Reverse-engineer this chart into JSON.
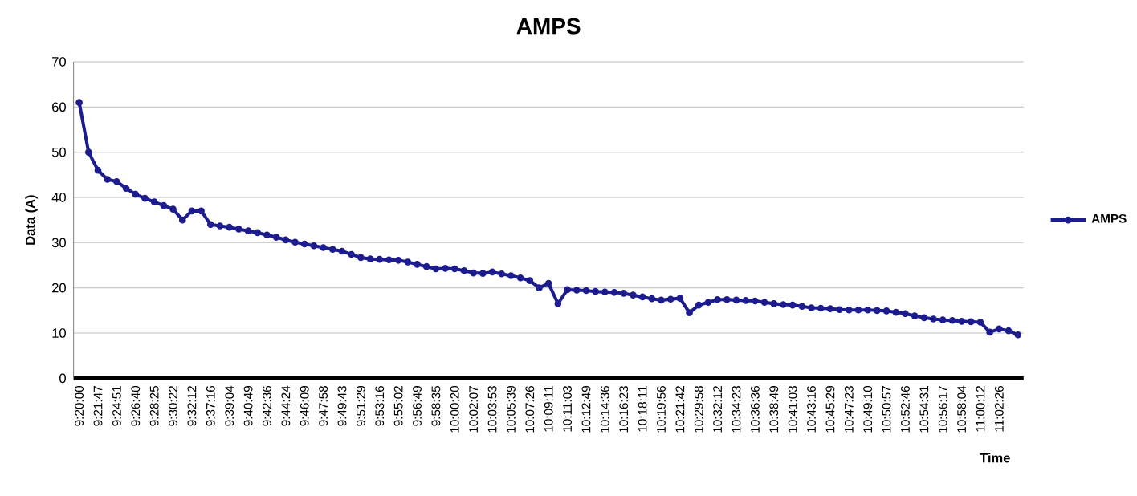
{
  "chart_data": {
    "type": "line",
    "title": "AMPS",
    "xlabel": "Time",
    "ylabel": "Data (A)",
    "categories": [
      "9:20:00",
      null,
      "9:21:47",
      null,
      "9:24:51",
      null,
      "9:26:40",
      null,
      "9:28:25",
      null,
      "9:30:22",
      null,
      "9:32:12",
      null,
      "9:37:16",
      null,
      "9:39:04",
      null,
      "9:40:49",
      null,
      "9:42:36",
      null,
      "9:44:24",
      null,
      "9:46:09",
      null,
      "9:47:58",
      null,
      "9:49:43",
      null,
      "9:51:29",
      null,
      "9:53:16",
      null,
      "9:55:02",
      null,
      "9:56:49",
      null,
      "9:58:35",
      null,
      "10:00:20",
      null,
      "10:02:07",
      null,
      "10:03:53",
      null,
      "10:05:39",
      null,
      "10:07:26",
      null,
      "10:09:11",
      null,
      "10:11:03",
      null,
      "10:12:49",
      null,
      "10:14:36",
      null,
      "10:16:23",
      null,
      "10:18:11",
      null,
      "10:19:56",
      null,
      "10:21:42",
      null,
      "10:29:58",
      null,
      "10:32:12",
      null,
      "10:34:23",
      null,
      "10:36:36",
      null,
      "10:38:49",
      null,
      "10:41:03",
      null,
      "10:43:16",
      null,
      "10:45:29",
      null,
      "10:47:23",
      null,
      "10:49:10",
      null,
      "10:50:57",
      null,
      "10:52:46",
      null,
      "10:54:31",
      null,
      "10:56:17",
      null,
      "10:58:04",
      null,
      "11:00:12",
      null,
      "11:02:26",
      null,
      null
    ],
    "series": [
      {
        "name": "AMPS",
        "color": "#1c1c8f",
        "values": [
          61,
          50,
          46,
          44,
          43.5,
          42,
          40.7,
          39.8,
          39,
          38.2,
          37.4,
          35,
          37,
          37,
          34,
          33.7,
          33.4,
          33,
          32.6,
          32.2,
          31.7,
          31.2,
          30.6,
          30.1,
          29.7,
          29.3,
          28.9,
          28.5,
          28.1,
          27.4,
          26.7,
          26.4,
          26.3,
          26.2,
          26.1,
          25.7,
          25.2,
          24.7,
          24.2,
          24.3,
          24.2,
          23.8,
          23.3,
          23.2,
          23.5,
          23.1,
          22.7,
          22.2,
          21.6,
          20,
          21,
          16.5,
          19.6,
          19.5,
          19.4,
          19.2,
          19.1,
          19,
          18.8,
          18.4,
          18,
          17.6,
          17.3,
          17.5,
          17.7,
          14.5,
          16.2,
          16.8,
          17.4,
          17.4,
          17.3,
          17.2,
          17.1,
          16.8,
          16.5,
          16.3,
          16.2,
          15.9,
          15.6,
          15.5,
          15.4,
          15.2,
          15.1,
          15.1,
          15.1,
          15,
          14.9,
          14.6,
          14.3,
          13.8,
          13.4,
          13.1,
          12.9,
          12.8,
          12.6,
          12.5,
          12.4,
          10.2,
          10.9,
          10.5,
          9.6
        ]
      }
    ],
    "ylim": [
      0,
      70
    ],
    "yticks": [
      0,
      10,
      20,
      30,
      40,
      50,
      60,
      70
    ],
    "grid": "y",
    "legend": "right",
    "marker": "circle"
  }
}
